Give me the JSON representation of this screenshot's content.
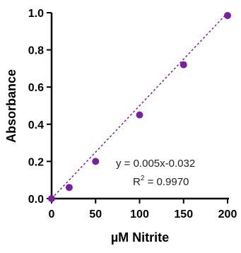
{
  "chart_data": {
    "type": "scatter",
    "title": "",
    "xlabel": "µM Nitrite",
    "ylabel": "Absorbance",
    "xlim": [
      0,
      200
    ],
    "ylim": [
      0.0,
      1.0
    ],
    "x_ticks": [
      "0",
      "50",
      "100",
      "150",
      "200"
    ],
    "y_ticks": [
      "0.0",
      "0.2",
      "0.4",
      "0.6",
      "0.8",
      "1.0"
    ],
    "grid": false,
    "series": [
      {
        "points": [
          {
            "x": 0,
            "y": 0.0
          },
          {
            "x": 20,
            "y": 0.06
          },
          {
            "x": 50,
            "y": 0.2
          },
          {
            "x": 100,
            "y": 0.45
          },
          {
            "x": 150,
            "y": 0.72
          },
          {
            "x": 200,
            "y": 0.985
          }
        ]
      }
    ],
    "trendline": {
      "style": "dashed",
      "x_range": [
        0,
        200
      ],
      "y_range": [
        0.0,
        1.0
      ]
    },
    "annotations": {
      "equation": "y = 0.005x-0.032",
      "r2_prefix": "R",
      "r2_sup": "2",
      "r2_value": " = 0.9970"
    },
    "colors": {
      "marker": "#7a1fa2",
      "trendline": "#7a1fa2",
      "axis": "#000000"
    }
  }
}
